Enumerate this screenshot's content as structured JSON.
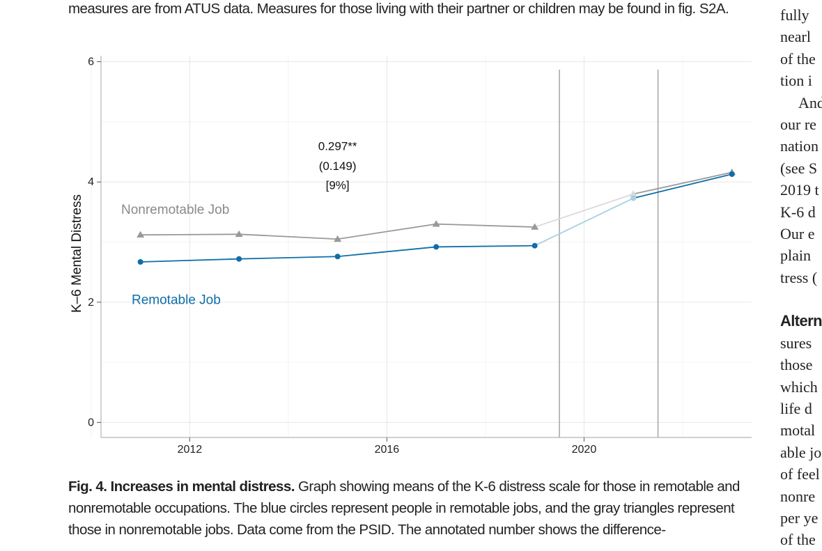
{
  "page": {
    "top_caption": "measures are from ATUS data. Measures for those living with their partner or children may be found in fig. S2A.",
    "figure_label": "Fig. 4. Increases in mental distress.",
    "figure_caption": " Graph showing means of the K-6 distress scale for those in remotable and nonremotable occupations. The blue circles represent people in remotable jobs, and the gray triangles represent those in nonremotable jobs. Data come from the PSID. The annotated number shows the difference-",
    "side_column": {
      "lines": [
        "fully",
        "nearl",
        "of the",
        "tion i",
        "And",
        "our re",
        "nation",
        "(see S",
        "2019 t",
        "K-6 d",
        "Our e",
        "plain",
        "tress (",
        "",
        "Altern",
        "sures",
        "those",
        "which",
        "life d",
        "motal",
        "able jo",
        "of feel",
        "nonre",
        "per ye",
        "of the"
      ]
    }
  },
  "chart_data": {
    "type": "line",
    "title": "",
    "xlabel": "",
    "ylabel": "K–6 Mental Distress",
    "xlim": [
      2010.2,
      2023.4
    ],
    "ylim": [
      -0.25,
      6.1
    ],
    "x_ticks": [
      2012,
      2016,
      2020
    ],
    "y_ticks": [
      0,
      2,
      4,
      6
    ],
    "grid": true,
    "vertical_lines": [
      2019.5,
      2021.5
    ],
    "series": [
      {
        "name": "Nonremotable Job",
        "marker": "triangle",
        "color": "#999999",
        "x": [
          2011,
          2013,
          2015,
          2017,
          2019,
          2021,
          2023
        ],
        "y": [
          3.12,
          3.13,
          3.05,
          3.3,
          3.25,
          3.8,
          4.16
        ]
      },
      {
        "name": "Remotable Job",
        "marker": "circle",
        "color": "#0f6ea8",
        "x": [
          2011,
          2013,
          2015,
          2017,
          2019,
          2021,
          2023
        ],
        "y": [
          2.67,
          2.72,
          2.76,
          2.92,
          2.94,
          3.73,
          4.13
        ]
      }
    ],
    "covid_segment_colors": {
      "Nonremotable Job": "#d9d9d9",
      "Remotable Job": "#a8cfe3"
    },
    "annotation": [
      "0.297**",
      "(0.149)",
      "[9%]"
    ]
  }
}
